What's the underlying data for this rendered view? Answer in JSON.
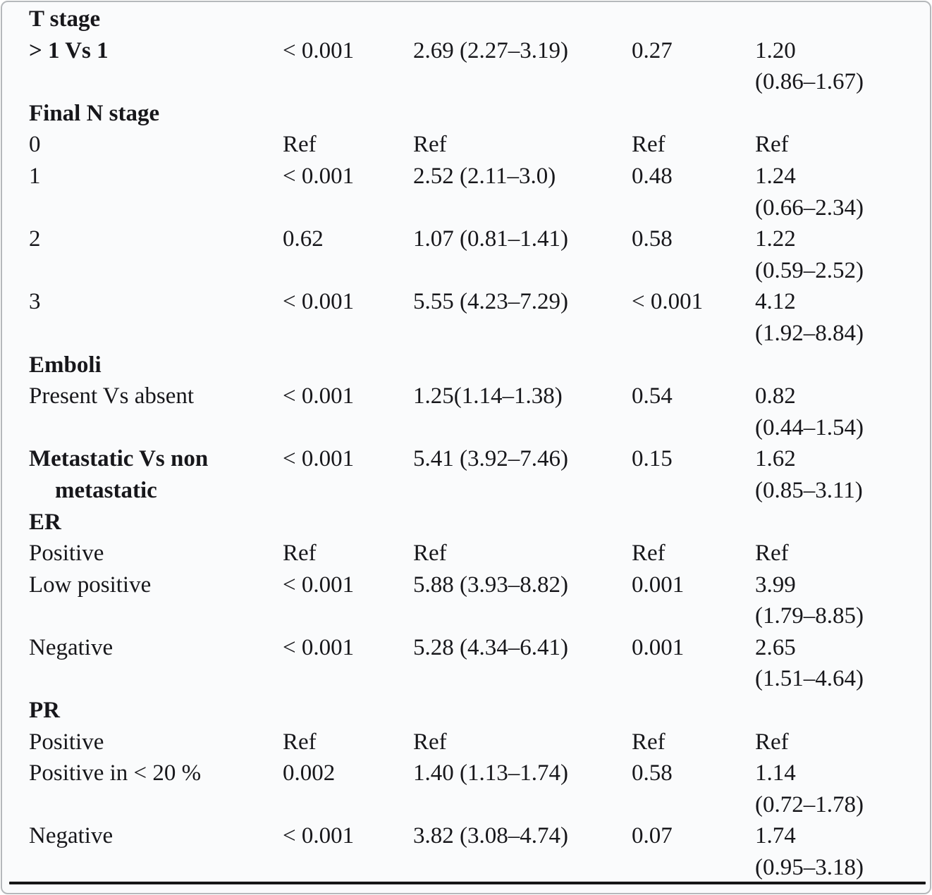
{
  "page": {
    "background": "#fafbfc",
    "border_color": "#b5b8bb",
    "text_color": "#17171b",
    "rule_color": "#161616"
  },
  "table": {
    "description": "statistical results table fragment: variable, univariate p-value, univariate HR (95% CI), multivariate p-value, multivariate HR (95% CI)",
    "rows": [
      {
        "type": "section",
        "label": "T stage"
      },
      {
        "type": "data",
        "bold": true,
        "label": "> 1 Vs 1",
        "p1": "< 0.001",
        "hr1": "2.69 (2.27–3.19)",
        "p2": "0.27",
        "hr2": "1.20",
        "hr2_ci": "(0.86–1.67)"
      },
      {
        "type": "section",
        "label": "Final N stage"
      },
      {
        "type": "data",
        "label": "0",
        "p1": "Ref",
        "hr1": "Ref",
        "p2": "Ref",
        "hr2": "Ref"
      },
      {
        "type": "data",
        "label": "1",
        "p1": "< 0.001",
        "hr1": "2.52 (2.11–3.0)",
        "p2": "0.48",
        "hr2": "1.24",
        "hr2_ci": "(0.66–2.34)"
      },
      {
        "type": "data",
        "label": "2",
        "p1": "0.62",
        "hr1": "1.07 (0.81–1.41)",
        "p2": "0.58",
        "hr2": "1.22",
        "hr2_ci": "(0.59–2.52)"
      },
      {
        "type": "data",
        "label": "3",
        "p1": "< 0.001",
        "hr1": "5.55 (4.23–7.29)",
        "p2": "< 0.001",
        "hr2": "4.12",
        "hr2_ci": "(1.92–8.84)"
      },
      {
        "type": "section",
        "label": "Emboli"
      },
      {
        "type": "data",
        "label": "Present Vs absent",
        "p1": "< 0.001",
        "hr1": "1.25(1.14–1.38)",
        "p2": "0.54",
        "hr2": "0.82",
        "hr2_ci": "(0.44–1.54)"
      },
      {
        "type": "data",
        "bold": true,
        "label": "Metastatic Vs non",
        "label2": "metastatic",
        "p1": "< 0.001",
        "hr1": "5.41 (3.92–7.46)",
        "p2": "0.15",
        "hr2": "1.62",
        "hr2_ci": "(0.85–3.11)"
      },
      {
        "type": "section",
        "label": "ER"
      },
      {
        "type": "data",
        "label": "Positive",
        "p1": "Ref",
        "hr1": "Ref",
        "p2": "Ref",
        "hr2": "Ref"
      },
      {
        "type": "data",
        "label": "Low positive",
        "p1": "< 0.001",
        "hr1": "5.88 (3.93–8.82)",
        "p2": "0.001",
        "hr2": "3.99",
        "hr2_ci": "(1.79–8.85)"
      },
      {
        "type": "data",
        "label": "Negative",
        "p1": "< 0.001",
        "hr1": "5.28 (4.34–6.41)",
        "p2": "0.001",
        "hr2": "2.65",
        "hr2_ci": "(1.51–4.64)"
      },
      {
        "type": "section",
        "label": "PR"
      },
      {
        "type": "data",
        "label": "Positive",
        "p1": "Ref",
        "hr1": "Ref",
        "p2": "Ref",
        "hr2": "Ref"
      },
      {
        "type": "data",
        "label": "Positive in < 20 %",
        "p1": "0.002",
        "hr1": "1.40 (1.13–1.74)",
        "p2": "0.58",
        "hr2": "1.14",
        "hr2_ci": "(0.72–1.78)"
      },
      {
        "type": "data",
        "label": "Negative",
        "p1": "< 0.001",
        "hr1": "3.82 (3.08–4.74)",
        "p2": "0.07",
        "hr2": "1.74",
        "hr2_ci": "(0.95–3.18)"
      }
    ]
  }
}
